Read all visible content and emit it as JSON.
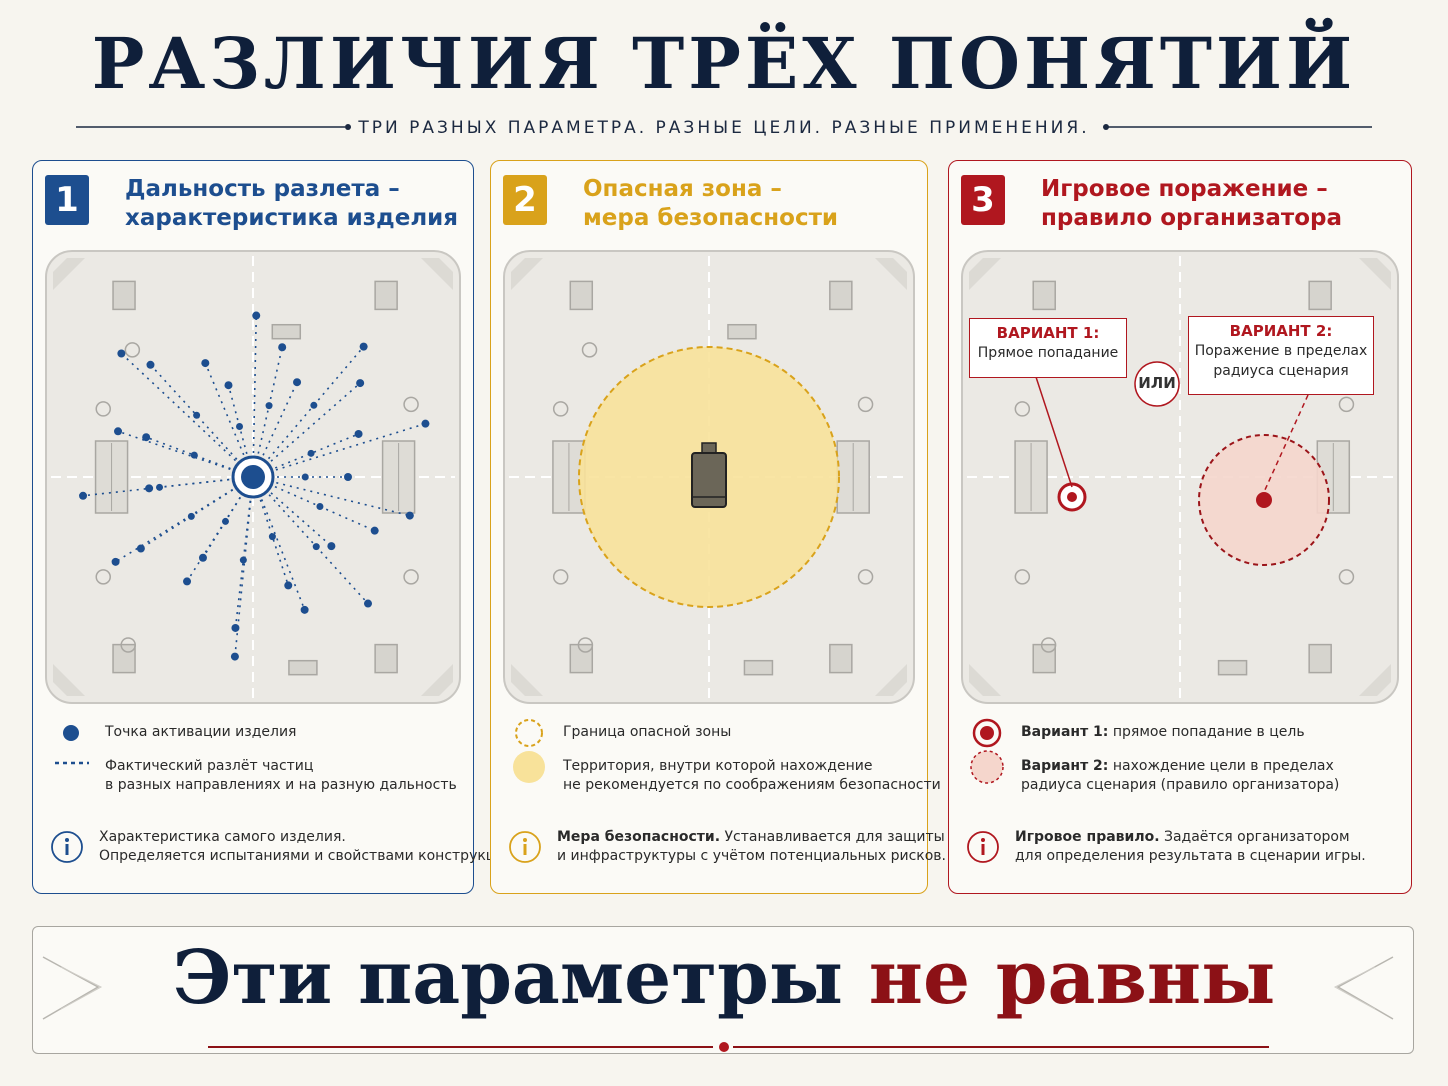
{
  "header": {
    "title": "РАЗЛИЧИЯ ТРЁХ ПОНЯТИЙ",
    "subtitle": "ТРИ РАЗНЫХ ПАРАМЕТРА. РАЗНЫЕ ЦЕЛИ. РАЗНЫЕ ПРИМЕНЕНИЯ."
  },
  "panels": [
    {
      "number": "1",
      "title": [
        "Дальность разлета –",
        "характеристика изделия"
      ],
      "legend": [
        {
          "lines": [
            "Точка активации изделия"
          ]
        },
        {
          "lines": [
            "Фактический разлёт частиц",
            "в разных направлениях и на разную дальность"
          ]
        }
      ],
      "info": {
        "lines": [
          "Характеристика самого изделия.",
          "Определяется испытаниями и свойствами конструкции."
        ]
      }
    },
    {
      "number": "2",
      "title": [
        "Опасная зона –",
        "мера безопасности"
      ],
      "legend": [
        {
          "lines": [
            "Граница опасной зоны"
          ]
        },
        {
          "lines": [
            "Территория, внутри которой нахождение",
            "не рекомендуется по соображениям безопасности"
          ]
        }
      ],
      "info": {
        "bold": "Мера безопасности.",
        "lines": [
          "Устанавливается для защиты людей",
          "и инфраструктуры с учётом потенциальных рисков."
        ]
      }
    },
    {
      "number": "3",
      "title": [
        "Игровое поражение –",
        "правило организатора"
      ],
      "callouts": [
        {
          "head": "ВАРИАНТ 1:",
          "lines": [
            "Прямое попадание"
          ]
        },
        {
          "head": "ВАРИАНТ 2:",
          "lines": [
            "Поражение в пределах",
            "радиуса сценария"
          ]
        }
      ],
      "or": "ИЛИ",
      "legend": [
        {
          "bold": "Вариант 1:",
          "lines": [
            "прямое попадание в цель"
          ]
        },
        {
          "bold": "Вариант 2:",
          "lines": [
            "нахождение цели в пределах",
            "радиуса сценария (правило организатора)"
          ]
        }
      ],
      "info": {
        "bold": "Игровое правило.",
        "lines": [
          "Задаётся организатором",
          "для определения результата в сценарии игры."
        ]
      }
    }
  ],
  "footer": {
    "text": "Эти параметры",
    "highlight": "не равны"
  }
}
